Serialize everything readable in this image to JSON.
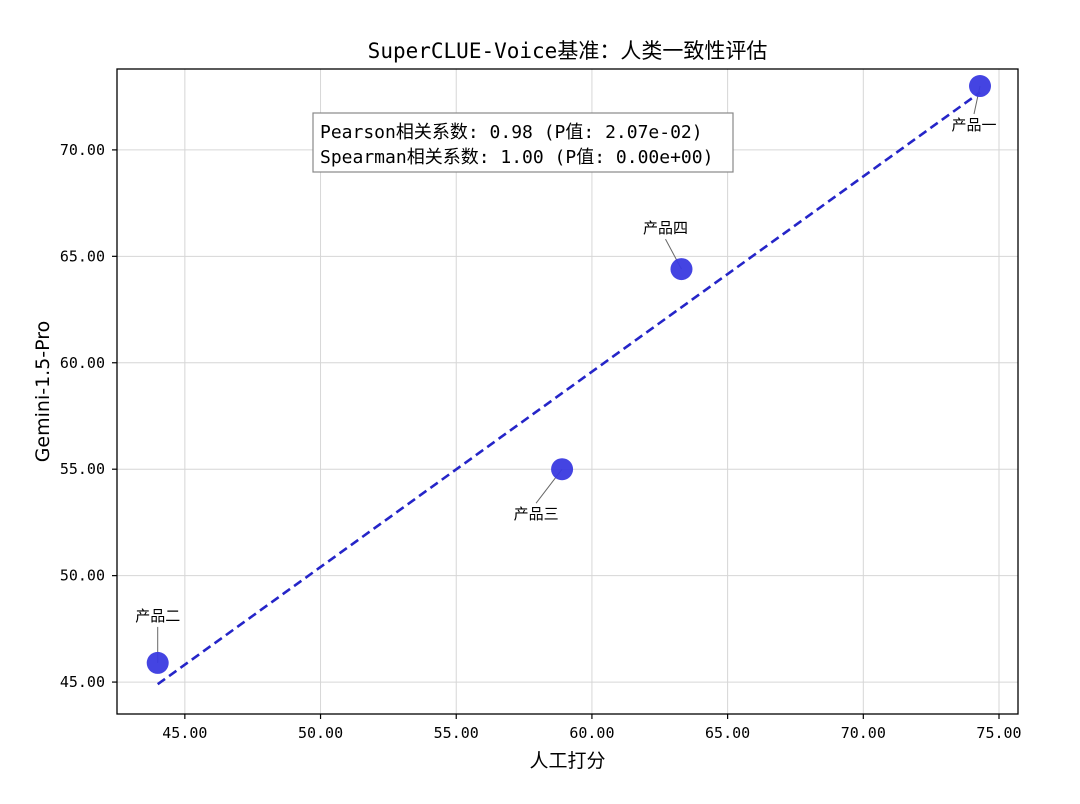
{
  "chart_data": {
    "type": "scatter",
    "title": "SuperCLUE-Voice基准：人类一致性评估",
    "xlabel": "人工打分",
    "ylabel": "Gemini-1.5-Pro",
    "xlim": [
      42.5,
      75.7
    ],
    "ylim": [
      43.5,
      73.8
    ],
    "x_ticks": [
      45,
      50,
      55,
      60,
      65,
      70,
      75
    ],
    "y_ticks": [
      45,
      50,
      55,
      60,
      65,
      70
    ],
    "tick_format_decimals": 2,
    "grid": true,
    "points": [
      {
        "label": "产品一",
        "x": 74.3,
        "y": 73.0
      },
      {
        "label": "产品二",
        "x": 44.0,
        "y": 45.9
      },
      {
        "label": "产品三",
        "x": 58.9,
        "y": 55.0
      },
      {
        "label": "产品四",
        "x": 63.3,
        "y": 64.4
      }
    ],
    "point_color": "#3a3ae0",
    "fit_line": {
      "style": "dashed",
      "color": "#2525c8",
      "x": [
        44.0,
        74.3
      ],
      "y": [
        44.9,
        72.7
      ]
    },
    "annotation": {
      "line1": "Pearson相关系数: 0.98 (P值: 2.07e-02)",
      "line2": "Spearman相关系数: 1.00 (P值: 0.00e+00)"
    }
  }
}
